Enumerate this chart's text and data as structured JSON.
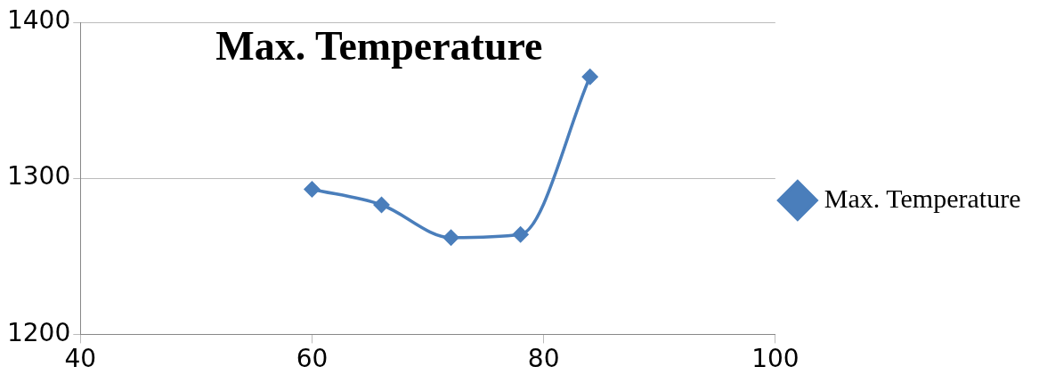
{
  "chart_data": {
    "type": "line",
    "title": "Max. Temperature",
    "x": [
      60,
      66,
      72,
      78,
      84
    ],
    "series": [
      {
        "name": "Max. Temperature",
        "color": "#4a7ebb",
        "values": [
          1293,
          1283,
          1262,
          1264,
          1365
        ]
      }
    ],
    "xlim": [
      40,
      100
    ],
    "xticks": [
      40,
      60,
      80,
      100
    ],
    "ylim": [
      1200,
      1400
    ],
    "yticks": [
      1200,
      1300,
      1400
    ],
    "grid": "y",
    "legend": "right",
    "marker": "diamond",
    "line_style": "solid"
  }
}
